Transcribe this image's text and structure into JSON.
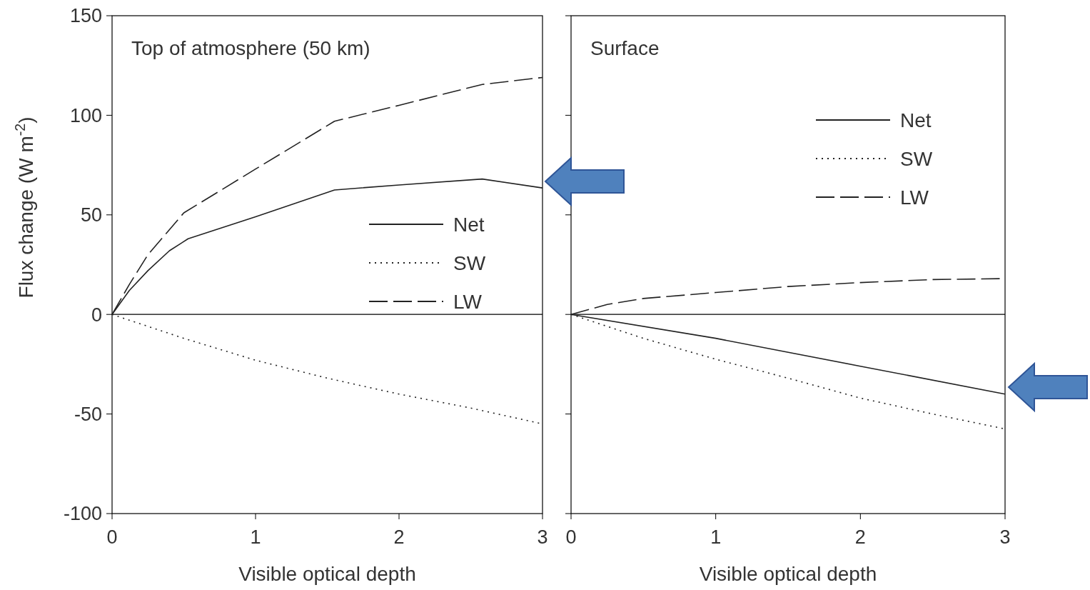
{
  "chart_data": [
    {
      "type": "line",
      "title": "Top of atmosphere (50 km)",
      "xlabel": "Visible optical depth",
      "ylabel": "Flux change (W m$^{-2}$)",
      "xlim": [
        0,
        3
      ],
      "xticks": [
        0,
        1,
        2,
        3
      ],
      "ylim": [
        -100,
        150
      ],
      "yticks": [
        -100,
        -50,
        0,
        50,
        100,
        150
      ],
      "grid": false,
      "legend": "right",
      "ref_lines": [
        {
          "axis": "y",
          "value": 0,
          "color": "#000000"
        }
      ],
      "series": [
        {
          "name": "Net",
          "color": "#222222",
          "line_style": "solid",
          "x": [
            0,
            0.12,
            0.25,
            0.4,
            0.53,
            1.0,
            1.55,
            2.0,
            2.58,
            3.0
          ],
          "values": [
            0,
            12,
            22,
            32,
            38,
            49,
            62.5,
            65,
            68,
            63.5
          ]
        },
        {
          "name": "SW",
          "color": "#222222",
          "line_style": "dotted",
          "x": [
            0,
            0.5,
            1.0,
            1.5,
            2.0,
            2.5,
            3.0
          ],
          "values": [
            0,
            -12,
            -23,
            -32,
            -40,
            -47,
            -55
          ]
        },
        {
          "name": "LW",
          "color": "#222222",
          "line_style": "dashed",
          "x": [
            0,
            0.12,
            0.25,
            0.5,
            1.0,
            1.55,
            2.0,
            2.58,
            3.0
          ],
          "values": [
            0,
            15,
            30,
            51,
            73,
            97,
            105,
            115.5,
            119
          ]
        }
      ]
    },
    {
      "type": "line",
      "title": "Surface",
      "xlabel": "Visible optical depth",
      "xlim": [
        0,
        3
      ],
      "xticks": [
        0,
        1,
        2,
        3
      ],
      "ylim": [
        -100,
        150
      ],
      "yticks": [
        -100,
        -50,
        0,
        50,
        100,
        150
      ],
      "tick_labels": "x",
      "grid": false,
      "legend": "top right",
      "ref_lines": [
        {
          "axis": "y",
          "value": 0,
          "color": "#000000"
        }
      ],
      "series": [
        {
          "name": "Net",
          "color": "#222222",
          "line_style": "solid",
          "x": [
            0,
            1.0,
            2.0,
            3.0
          ],
          "values": [
            0,
            -12,
            -26,
            -40
          ]
        },
        {
          "name": "SW",
          "color": "#222222",
          "line_style": "dotted",
          "x": [
            0,
            0.5,
            1.0,
            1.5,
            2.0,
            2.5,
            3.0
          ],
          "values": [
            0,
            -12,
            -22.5,
            -32,
            -42,
            -50,
            -57.5
          ]
        },
        {
          "name": "LW",
          "color": "#222222",
          "line_style": "dashed",
          "x": [
            0,
            0.25,
            0.5,
            1.0,
            1.5,
            2.0,
            2.5,
            3.0
          ],
          "values": [
            0,
            5,
            8,
            11,
            14,
            16,
            17.5,
            18
          ]
        }
      ]
    }
  ]
}
